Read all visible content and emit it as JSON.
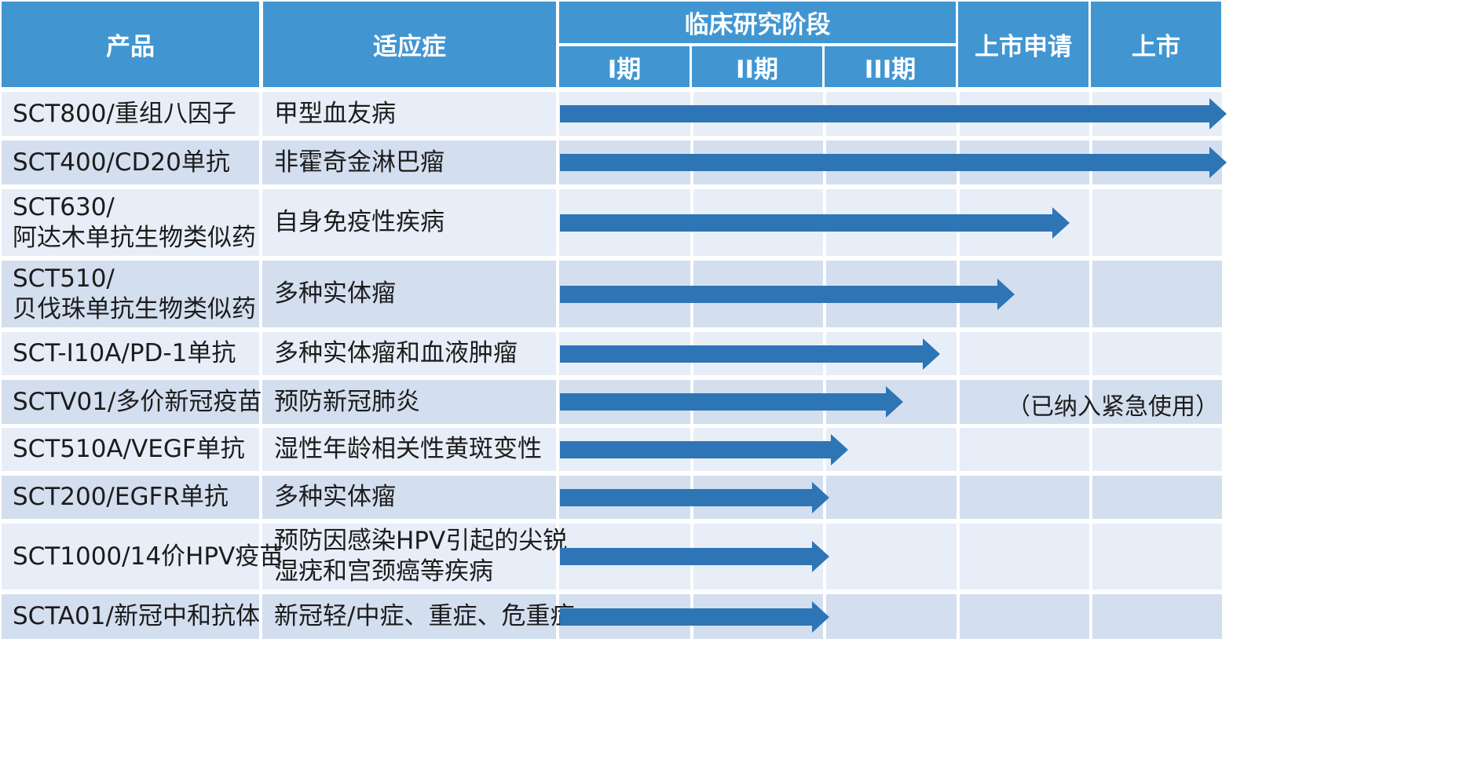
{
  "header": {
    "product": "产品",
    "indication": "适应症",
    "clinical_stage": "临床研究阶段",
    "phase1": "I期",
    "phase2": "II期",
    "phase3": "III期",
    "nda": "上市申请",
    "market": "上市"
  },
  "colors": {
    "header_bg": "#4196d2",
    "row_light": "#e8eef8",
    "row_dark": "#d3deef",
    "arrow": "#2e75b6"
  },
  "rows": [
    {
      "product": [
        "SCT800/重组八因子"
      ],
      "indication": [
        "甲型血友病"
      ],
      "stage": "上市"
    },
    {
      "product": [
        "SCT400/CD20单抗"
      ],
      "indication": [
        "非霍奇金淋巴瘤"
      ],
      "stage": "上市"
    },
    {
      "product": [
        "SCT630/",
        "阿达木单抗生物类似药"
      ],
      "indication": [
        "自身免疫性疾病"
      ],
      "stage": "上市申请"
    },
    {
      "product": [
        "SCT510/",
        "贝伐珠单抗生物类似药"
      ],
      "indication": [
        "多种实体瘤"
      ],
      "stage": "上市申请"
    },
    {
      "product": [
        "SCT-I10A/PD-1单抗"
      ],
      "indication": [
        "多种实体瘤和血液肿瘤"
      ],
      "stage": "III期"
    },
    {
      "product": [
        "SCTV01/多价新冠疫苗"
      ],
      "indication": [
        "预防新冠肺炎"
      ],
      "stage": "III期",
      "note": "（已纳入紧急使用）"
    },
    {
      "product": [
        "SCT510A/VEGF单抗"
      ],
      "indication": [
        "湿性年龄相关性黄斑变性"
      ],
      "stage": "II期"
    },
    {
      "product": [
        "SCT200/EGFR单抗"
      ],
      "indication": [
        "多种实体瘤"
      ],
      "stage": "II期"
    },
    {
      "product": [
        "SCT1000/14价HPV疫苗"
      ],
      "indication": [
        "预防因感染HPV引起的尖锐",
        "湿疣和宫颈癌等疾病"
      ],
      "stage": "II期"
    },
    {
      "product": [
        "SCTA01/新冠中和抗体"
      ],
      "indication": [
        "新冠轻/中症、重症、危重症"
      ],
      "stage": "II期"
    }
  ]
}
